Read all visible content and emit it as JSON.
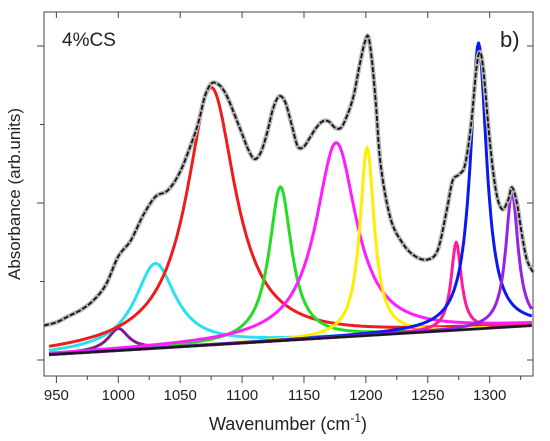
{
  "chart_data": {
    "type": "line",
    "panel_label": "b)",
    "annotation": "4%CS",
    "xlabel": "Wavenumber (cm",
    "xlabel_sup": "-1",
    "xlabel_end": ")",
    "ylabel": "Absorbance (arb.units)",
    "xlim": [
      940,
      1335
    ],
    "ylim": [
      0,
      1.0
    ],
    "x_ticks": [
      950,
      1000,
      1050,
      1100,
      1150,
      1200,
      1250,
      1300
    ],
    "y_ticks_shown": false,
    "baseline": {
      "x": [
        940,
        1335
      ],
      "y": [
        0.016,
        0.11
      ],
      "color": "#1a1a1a"
    },
    "components": [
      {
        "center": 1000,
        "height": 0.07,
        "width": 10,
        "color": "#7a1f8f"
      },
      {
        "center": 1030,
        "height": 0.27,
        "width": 20,
        "color": "#29e0f0"
      },
      {
        "center": 1075,
        "height": 0.82,
        "width": 24,
        "color": "#ee1c1c"
      },
      {
        "center": 1131,
        "height": 0.49,
        "width": 11,
        "color": "#22dd22"
      },
      {
        "center": 1176,
        "height": 0.62,
        "width": 20,
        "color": "#ff1cff"
      },
      {
        "center": 1201,
        "height": 0.6,
        "width": 7,
        "color": "#ffee00"
      },
      {
        "center": 1273,
        "height": 0.28,
        "width": 5,
        "color": "#ff1a9e"
      },
      {
        "center": 1291,
        "height": 0.91,
        "width": 8,
        "color": "#0a1aee"
      },
      {
        "center": 1318,
        "height": 0.43,
        "width": 6,
        "color": "#9a22e8"
      }
    ],
    "envelope": {
      "x": [
        940,
        950,
        960,
        970,
        980,
        990,
        1000,
        1010,
        1020,
        1030,
        1040,
        1050,
        1060,
        1065,
        1070,
        1075,
        1080,
        1085,
        1090,
        1100,
        1105,
        1110,
        1115,
        1120,
        1125,
        1130,
        1135,
        1140,
        1145,
        1150,
        1155,
        1160,
        1165,
        1170,
        1175,
        1180,
        1185,
        1190,
        1195,
        1199,
        1202,
        1205,
        1208,
        1212,
        1220,
        1230,
        1240,
        1250,
        1258,
        1265,
        1270,
        1275,
        1280,
        1285,
        1289,
        1292,
        1295,
        1300,
        1305,
        1310,
        1315,
        1318,
        1322,
        1326,
        1330,
        1335
      ],
      "y": [
        0.11,
        0.12,
        0.14,
        0.16,
        0.19,
        0.24,
        0.33,
        0.38,
        0.46,
        0.52,
        0.54,
        0.6,
        0.7,
        0.76,
        0.84,
        0.88,
        0.88,
        0.86,
        0.82,
        0.72,
        0.67,
        0.64,
        0.66,
        0.72,
        0.8,
        0.84,
        0.82,
        0.75,
        0.68,
        0.68,
        0.71,
        0.74,
        0.76,
        0.76,
        0.74,
        0.74,
        0.78,
        0.84,
        0.94,
        1.01,
        1.03,
        0.95,
        0.82,
        0.62,
        0.45,
        0.37,
        0.33,
        0.32,
        0.35,
        0.47,
        0.57,
        0.59,
        0.62,
        0.75,
        0.92,
        0.98,
        0.92,
        0.7,
        0.54,
        0.48,
        0.51,
        0.55,
        0.5,
        0.4,
        0.32,
        0.28
      ]
    }
  }
}
